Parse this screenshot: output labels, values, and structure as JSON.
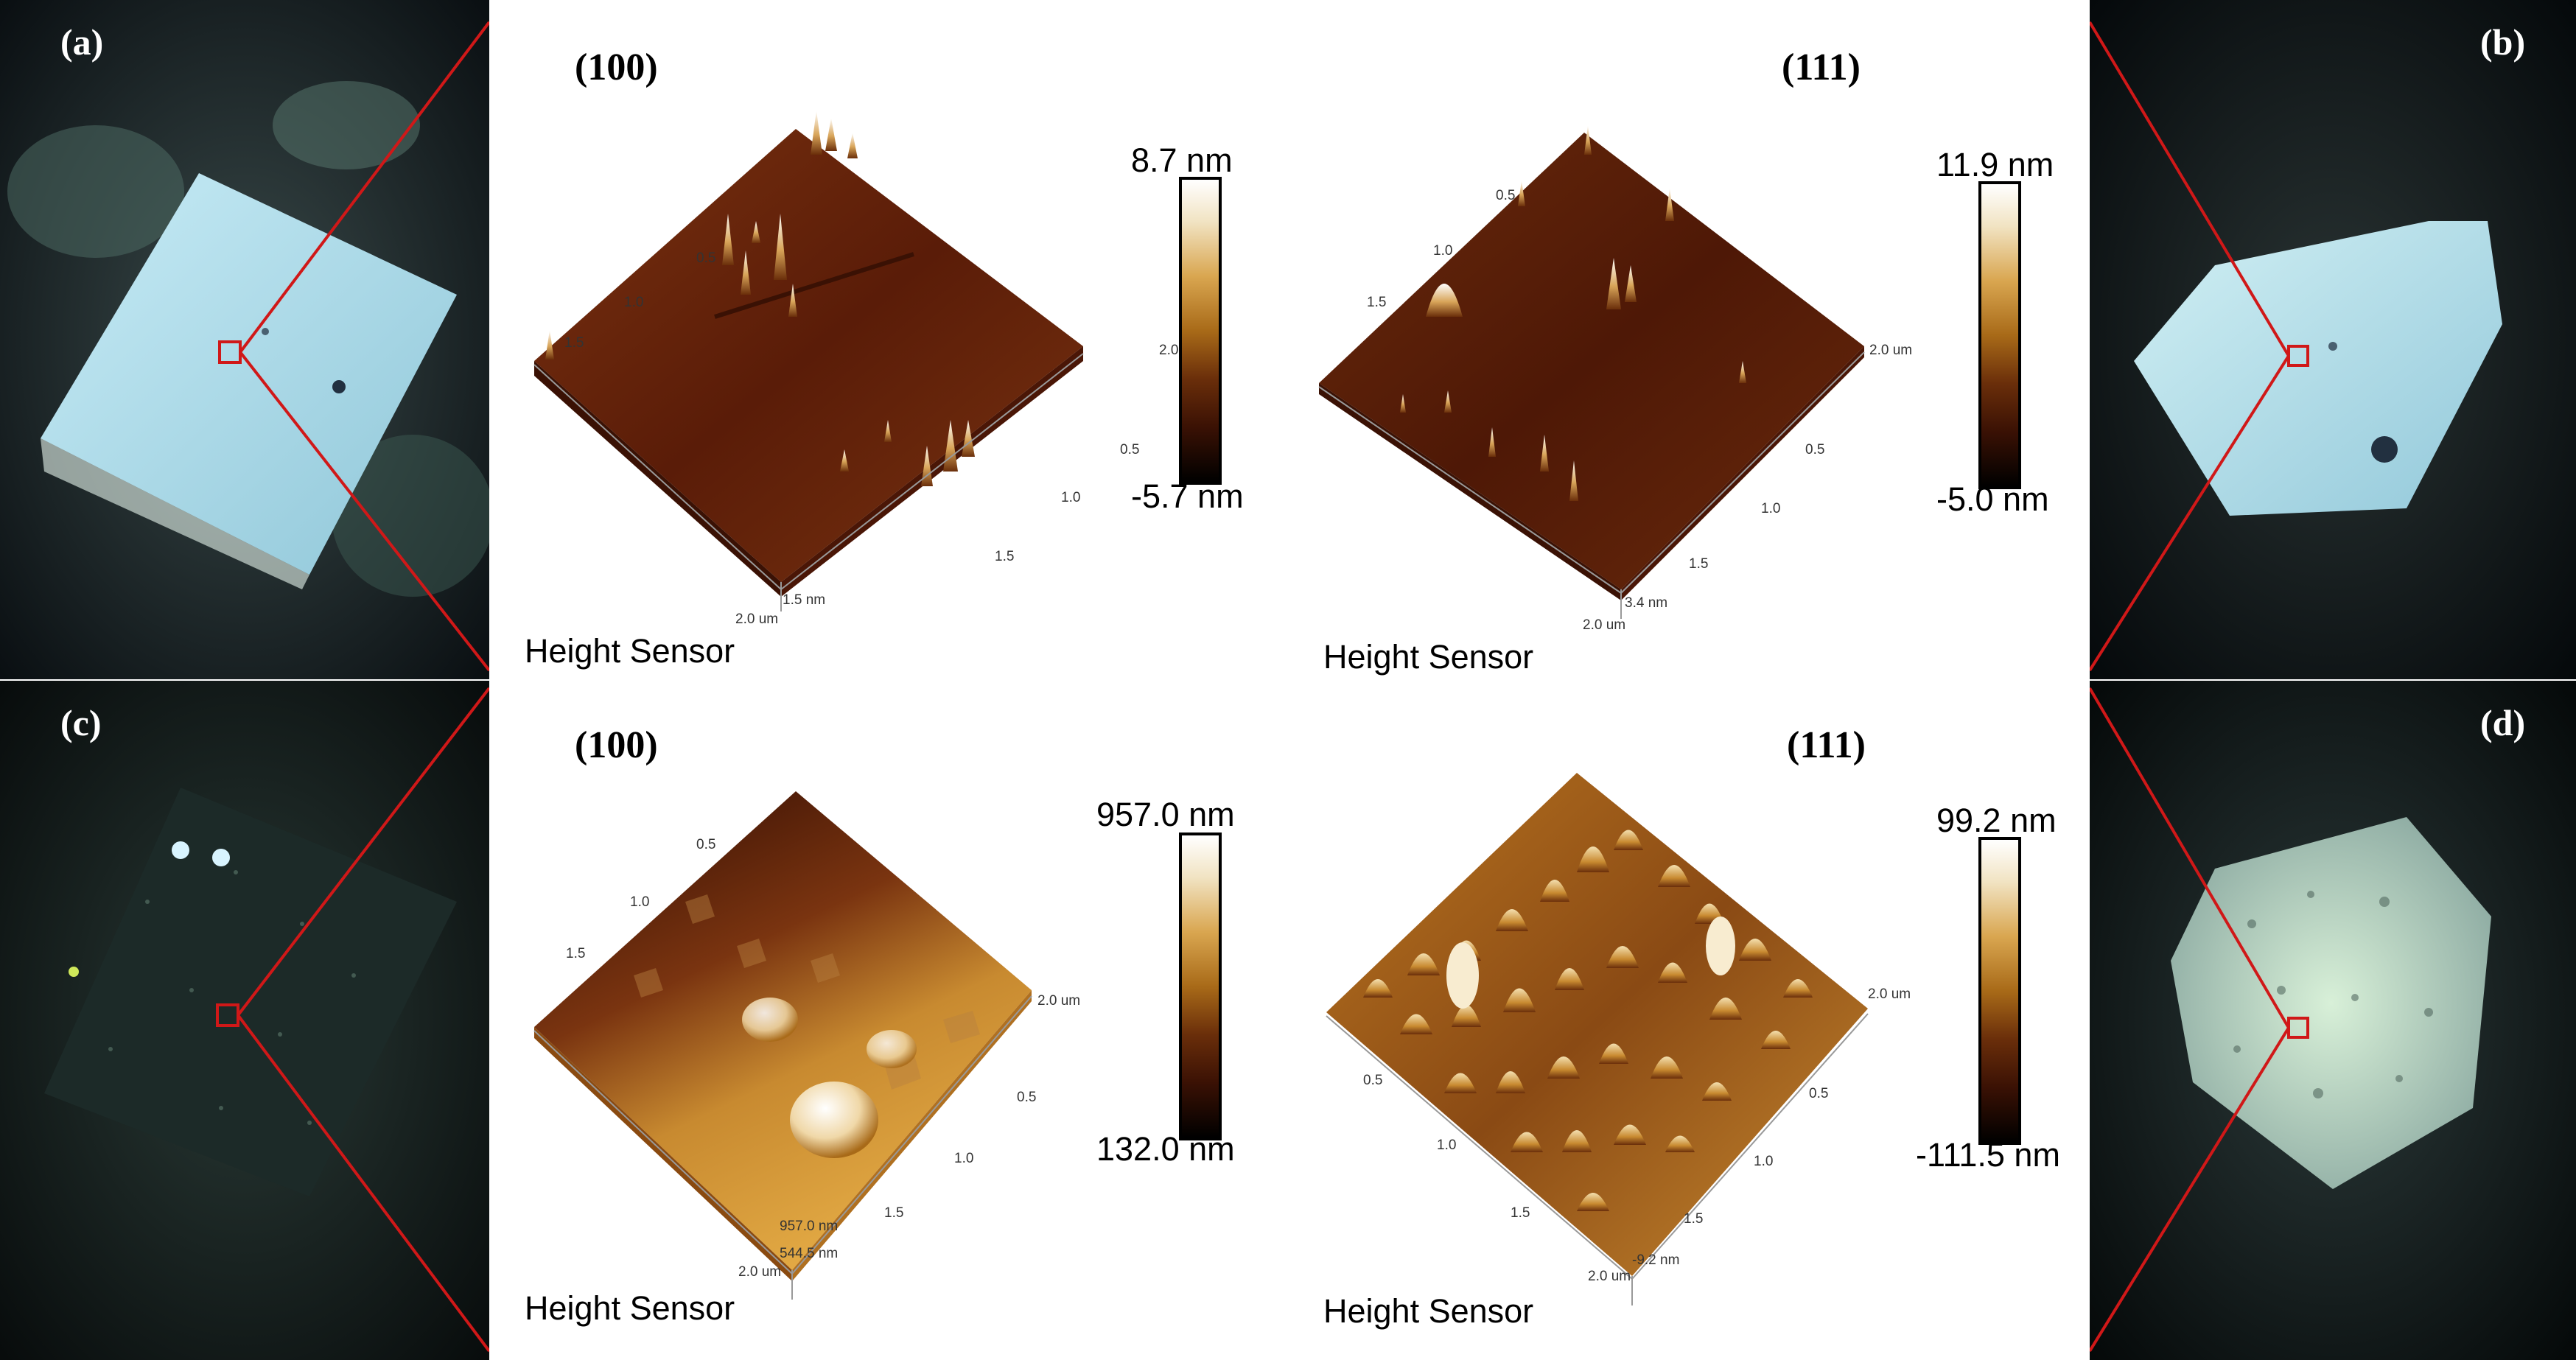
{
  "panels": {
    "a": {
      "label": "(a)",
      "plane": "(100)",
      "sensor": "Height Sensor",
      "colorbar": {
        "max": "8.7 nm",
        "min": "-5.7 nm"
      },
      "ticks": {
        "y": [
          "0.5",
          "1.0",
          "1.5",
          "2.0 um"
        ],
        "x": [
          "0.5",
          "1.0",
          "1.5",
          "2.0 um"
        ],
        "z": [
          "1.5 nm"
        ]
      }
    },
    "b": {
      "label": "(b)",
      "plane": "(111)",
      "sensor": "Height Sensor",
      "colorbar": {
        "max": "11.9 nm",
        "min": "-5.0 nm"
      },
      "ticks": {
        "y": [
          "0.5",
          "1.0",
          "1.5",
          "2.0 um"
        ],
        "x": [
          "0.5",
          "1.0",
          "1.5",
          "2.0 um"
        ],
        "z": [
          "3.4 nm"
        ]
      }
    },
    "c": {
      "label": "(c)",
      "plane": "(100)",
      "sensor": "Height Sensor",
      "colorbar": {
        "max": "957.0 nm",
        "min": "132.0 nm"
      },
      "ticks": {
        "y": [
          "0.5",
          "1.0",
          "1.5",
          "2.0 um"
        ],
        "x": [
          "0.5",
          "1.0",
          "1.5",
          "2.0 um"
        ],
        "z": [
          "957.0 nm",
          "544.5 nm"
        ]
      }
    },
    "d": {
      "label": "(d)",
      "plane": "(111)",
      "sensor": "Height Sensor",
      "colorbar": {
        "max": "99.2 nm",
        "min": "-111.5 nm"
      },
      "ticks": {
        "y": [
          "0.5",
          "1.0",
          "1.5",
          "2.0 um"
        ],
        "x": [
          "0.5",
          "1.0",
          "1.5",
          "2.0 um"
        ],
        "z": [
          "-9.2 nm"
        ]
      }
    }
  },
  "colors": {
    "zoom_lines": "#d01818",
    "afm_dark": "#3a0f04",
    "afm_mid": "#7a3210",
    "afm_light": "#e0a85a"
  }
}
